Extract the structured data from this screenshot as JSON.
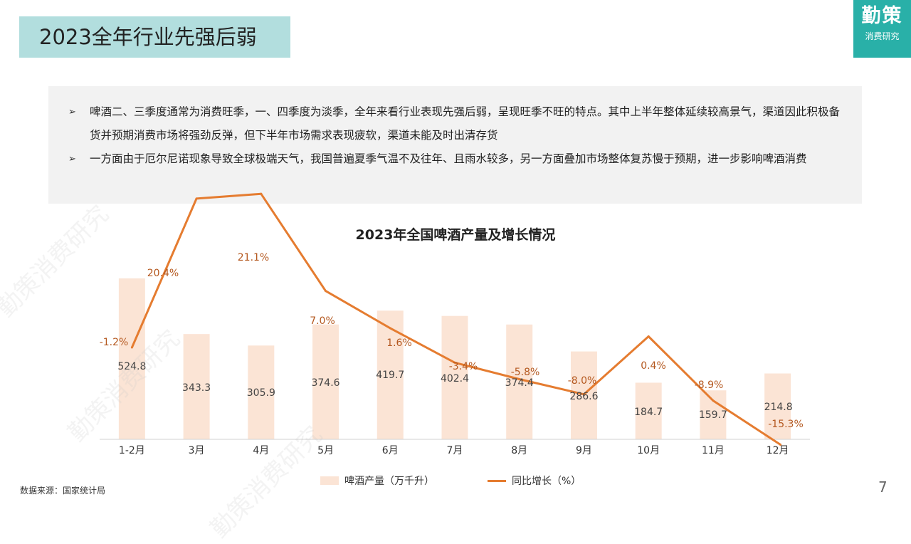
{
  "header": {
    "title": "2023全年行业先强后弱"
  },
  "logo": {
    "main": "勤策",
    "sub": "消费研究"
  },
  "notes": [
    {
      "mark": "➢",
      "text": "啤酒二、三季度通常为消费旺季，一、四季度为淡季，全年来看行业表现先强后弱，呈现旺季不旺的特点。其中上半年整体延续较高景气，渠道因此积极备货并预期消费市场将强劲反弹，但下半年市场需求表现疲软，渠道未能及时出清存货"
    },
    {
      "mark": "➢",
      "text": "一方面由于厄尔尼诺现象导致全球极端天气，我国普遍夏季气温不及往年、且雨水较多，另一方面叠加市场整体复苏慢于预期，进一步影响啤酒消费"
    }
  ],
  "chart_data": {
    "type": "bar",
    "title": "2023年全国啤酒产量及增长情况",
    "categories": [
      "1-2月",
      "3月",
      "4月",
      "5月",
      "6月",
      "7月",
      "8月",
      "9月",
      "10月",
      "11月",
      "12月"
    ],
    "series": [
      {
        "name": "啤酒产量（万千升）",
        "type": "bar",
        "values": [
          524.8,
          343.3,
          305.9,
          374.6,
          419.7,
          402.4,
          374.4,
          286.6,
          184.7,
          159.7,
          214.8
        ],
        "labels": [
          "524.8",
          "343.3",
          "305.9",
          "374.6",
          "419.7",
          "402.4",
          "374.4",
          "286.6",
          "184.7",
          "159.7",
          "214.8"
        ],
        "color": "#fbe4d5"
      },
      {
        "name": "同比增长（%）",
        "type": "line",
        "values": [
          -1.2,
          20.4,
          21.1,
          7.0,
          1.6,
          -3.4,
          -5.8,
          -8.0,
          0.4,
          -8.9,
          -15.3
        ],
        "labels": [
          "-1.2%",
          "20.4%",
          "21.1%",
          "7.0%",
          "1.6%",
          "-3.4%",
          "-5.8%",
          "-8.0%",
          "0.4%",
          "-8.9%",
          "-15.3%"
        ],
        "color": "#e57c30"
      }
    ],
    "bar_axis_range": [
      0,
      600
    ],
    "line_axis_range": [
      -20,
      30
    ],
    "grid": false,
    "legend_position": "bottom"
  },
  "legend": {
    "bar_label": "啤酒产量（万千升）",
    "line_label": "同比增长（%）"
  },
  "source": "数据来源：国家统计局",
  "page_number": "7",
  "watermark": "勤策消费研究"
}
